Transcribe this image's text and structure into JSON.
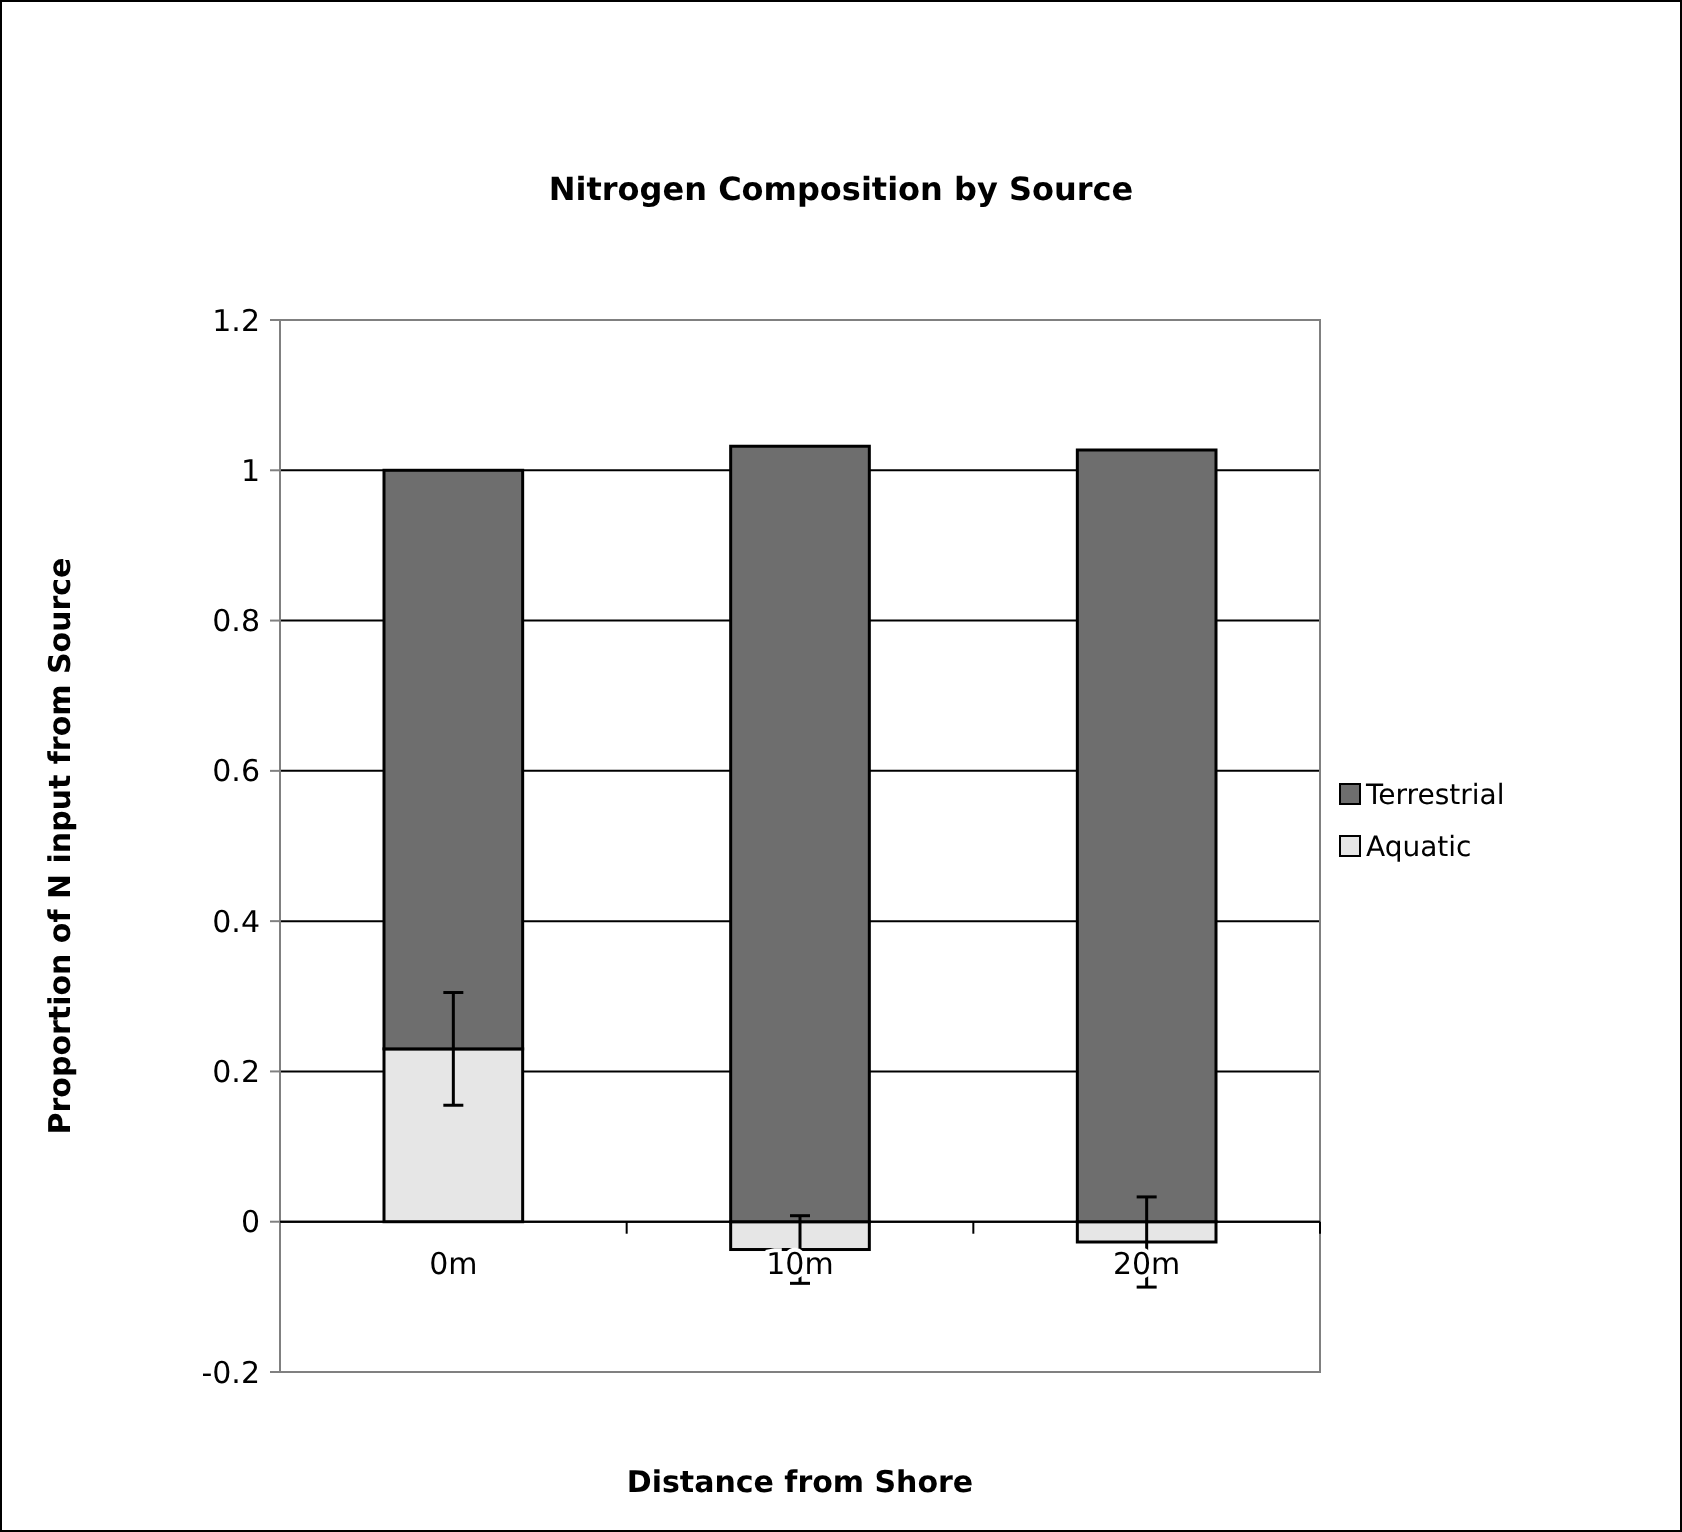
{
  "chart_data": {
    "type": "bar",
    "title": "Nitrogen Composition by Source",
    "xlabel": "Distance from Shore",
    "ylabel": "Proportion of N input from Source",
    "categories": [
      "0m",
      "10m",
      "20m"
    ],
    "stacked": true,
    "series": [
      {
        "name": "Aquatic",
        "color": "#e6e6e6",
        "values": [
          0.23,
          -0.037,
          -0.027
        ],
        "errors": [
          0.075,
          0.045,
          0.06
        ]
      },
      {
        "name": "Terrestrial",
        "color": "#6e6e6e",
        "values": [
          0.77,
          1.032,
          1.027
        ]
      }
    ],
    "ylim": [
      -0.2,
      1.2
    ],
    "yticks": [
      -0.2,
      0,
      0.2,
      0.4,
      0.6,
      0.8,
      1,
      1.2
    ],
    "grid": "y",
    "legend": "right"
  }
}
